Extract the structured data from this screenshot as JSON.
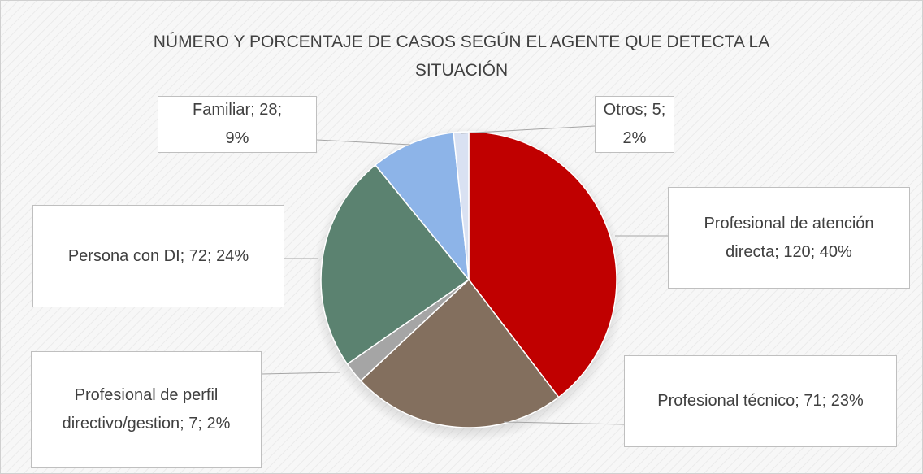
{
  "chart_data": {
    "type": "pie",
    "title": "NÚMERO Y PORCENTAJE DE CASOS SEGÚN EL AGENTE QUE DETECTA LA SITUACIÓN",
    "values": [
      120,
      71,
      7,
      72,
      28,
      5
    ],
    "value_labels": [
      "Profesional de atención directa; 120; 40%",
      "Profesional técnico; 71; 23%",
      "Profesional de perfil directivo/gestion; 7; 2%",
      "Persona con DI; 72; 24%",
      "Familiar; 28; 9%",
      "Otros; 5; 2%"
    ],
    "colors": [
      "#c00000",
      "#836f5e",
      "#a5a5a5",
      "#5b8270",
      "#8db4e8",
      "#d9e1f2"
    ]
  }
}
